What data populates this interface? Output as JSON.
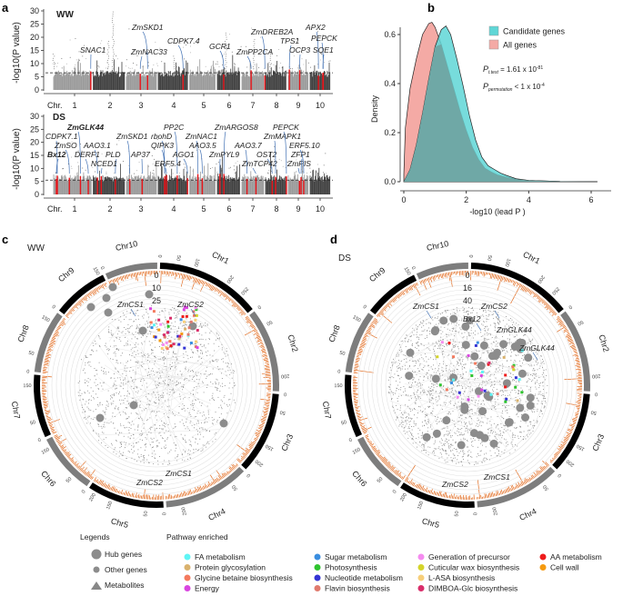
{
  "panels": {
    "a": "a",
    "b": "b",
    "c": "c",
    "d": "d"
  },
  "chart_data": [
    {
      "type": "scatter",
      "subtype": "manhattan",
      "condition": "WW",
      "ylabel": "-log10(P value)",
      "xlabel": "Chr.",
      "yticks": [
        "0",
        "5",
        "10",
        "15",
        "20",
        "25",
        "30"
      ],
      "ylim": [
        0,
        30
      ],
      "categories": [
        "1",
        "2",
        "3",
        "4",
        "5",
        "6",
        "7",
        "8",
        "9",
        "10"
      ],
      "threshold": 6.5,
      "point_colors": [
        "#9a9a9a",
        "#404040"
      ],
      "highlight_color": "#e8141a",
      "annotation_color": "#3f6fb3",
      "genes": [
        "SNAC1",
        "ZmSKD1",
        "ZmNAC33",
        "CDPK7.4",
        "GCR1",
        "ZmDREB2A",
        "ZmPP2CA",
        "TPS1",
        "OCP3",
        "APX2",
        "PEPCK",
        "SQE1"
      ]
    },
    {
      "type": "scatter",
      "subtype": "manhattan",
      "condition": "DS",
      "ylabel": "-log10(P value)",
      "xlabel": "Chr.",
      "yticks": [
        "0",
        "5",
        "10",
        "15",
        "20",
        "25",
        "30"
      ],
      "ylim": [
        0,
        30
      ],
      "categories": [
        "1",
        "2",
        "3",
        "4",
        "5",
        "6",
        "7",
        "8",
        "9",
        "10"
      ],
      "threshold": 5.5,
      "genes": [
        "CDPK7.1",
        "ZmGLK44",
        "ZmSO",
        "AAO3.1",
        "Bx12",
        "DERF1",
        "PLD",
        "ZmSKD1",
        "NCED1",
        "rbohD",
        "PP2C",
        "ZmNAC1",
        "QIPK3",
        "AP37",
        "AAO3.5",
        "AGO1",
        "ERF5.4",
        "ZmARGOS8",
        "AAO3.7",
        "OST2",
        "ZmPYL9",
        "ZmTCP42",
        "ZmMAPK1",
        "PEPCK",
        "ZmPIS",
        "ZFP1",
        "ERF5.10"
      ],
      "bold_genes": [
        "ZmGLK44",
        "Bx12"
      ]
    },
    {
      "type": "area",
      "subtype": "density",
      "xlabel": "-log10 (lead P )",
      "ylabel": "Density",
      "xlim": [
        0,
        6.2
      ],
      "ylim": [
        0,
        0.7
      ],
      "xticks": [
        "0",
        "2",
        "4",
        "6"
      ],
      "yticks": [
        "0.0",
        "0.2",
        "0.4",
        "0.6"
      ],
      "legend_position": "top-right",
      "series": [
        {
          "name": "All genes",
          "color": "#f4aaa5",
          "x": [
            0,
            0.05,
            0.2,
            0.4,
            0.6,
            0.8,
            0.9,
            1.0,
            1.2,
            1.4,
            1.6,
            1.8,
            2.0,
            2.2,
            2.4,
            2.6,
            2.8,
            3.0,
            3.3,
            3.6,
            4.0,
            5.0,
            6.2
          ],
          "y": [
            0.03,
            0.22,
            0.38,
            0.5,
            0.6,
            0.645,
            0.65,
            0.63,
            0.56,
            0.47,
            0.38,
            0.29,
            0.21,
            0.14,
            0.09,
            0.055,
            0.04,
            0.028,
            0.018,
            0.01,
            0.005,
            0.001,
            0
          ]
        },
        {
          "name": "Candidate genes",
          "color": "#5fd6d6",
          "x": [
            0,
            0.2,
            0.4,
            0.6,
            0.8,
            1.0,
            1.2,
            1.35,
            1.5,
            1.7,
            1.9,
            2.1,
            2.3,
            2.5,
            2.7,
            2.9,
            3.1,
            3.3,
            3.6,
            4.0,
            5.0,
            6.2
          ],
          "y": [
            0.0,
            0.05,
            0.15,
            0.28,
            0.42,
            0.55,
            0.62,
            0.635,
            0.6,
            0.5,
            0.39,
            0.27,
            0.17,
            0.1,
            0.065,
            0.05,
            0.035,
            0.025,
            0.012,
            0.005,
            0.001,
            0
          ]
        }
      ],
      "annotations": [
        {
          "label": "P",
          "sub": "t.test",
          "text": " = 1.61 x 10",
          "sup": "-81"
        },
        {
          "label": "P",
          "sub": "permutation",
          "text": " < 1 x 10",
          "sup": "-4"
        }
      ]
    }
  ],
  "circos": [
    {
      "condition": "WW",
      "radial_ticks": [
        "0",
        "10",
        "25"
      ],
      "hub_labels": [
        "ZmCS1",
        "ZmCS2"
      ],
      "outer_labels": [
        "ZmCS1",
        "ZmCS2"
      ]
    },
    {
      "condition": "DS",
      "radial_ticks": [
        "0",
        "16",
        "40"
      ],
      "hub_labels": [
        "Bx12",
        "ZmCS1",
        "ZmCS2",
        "ZmGLK44"
      ],
      "outer_labels": [
        "ZmGLK44",
        "ZmCS1",
        "ZmCS2"
      ]
    }
  ],
  "chromosomes": [
    "Chr1",
    "Chr2",
    "Chr3",
    "Chr4",
    "Chr5",
    "Chr6",
    "Chr7",
    "Chr8",
    "Chr9",
    "Chr10"
  ],
  "chromosome_lengths_mb": [
    300,
    240,
    235,
    245,
    220,
    175,
    180,
    180,
    160,
    150
  ],
  "legend": {
    "title": "Legends",
    "items": [
      {
        "label": "Hub genes",
        "shape": "large-circle"
      },
      {
        "label": "Other genes",
        "shape": "small-circle"
      },
      {
        "label": "Metabolites",
        "shape": "triangle"
      }
    ],
    "pathway_title": "Pathway enriched",
    "pathways": [
      {
        "label": "FA metabolism",
        "color": "#5ff5f5"
      },
      {
        "label": "Protein glycosylation",
        "color": "#d9b26e"
      },
      {
        "label": "Glycine betaine biosynthesis",
        "color": "#f47a5e"
      },
      {
        "label": "Energy",
        "color": "#d946e0"
      },
      {
        "label": "Sugar metabolism",
        "color": "#3a8ee0"
      },
      {
        "label": "Photosynthesis",
        "color": "#2fc42f"
      },
      {
        "label": "Nucleotide metabolism",
        "color": "#3434d4"
      },
      {
        "label": "Flavin biosynthesis",
        "color": "#e07a6e"
      },
      {
        "label": "Generation of precursor",
        "color": "#f58cf0"
      },
      {
        "label": "Cuticular wax biosynthesis",
        "color": "#d4d42a"
      },
      {
        "label": "L-ASA biosynthesis",
        "color": "#f7cf7a"
      },
      {
        "label": "DIMBOA-Glc biosynthesis",
        "color": "#d92e6a"
      },
      {
        "label": "AA metabolism",
        "color": "#ee1c1c"
      },
      {
        "label": "Cell wall",
        "color": "#f59a10"
      }
    ]
  }
}
